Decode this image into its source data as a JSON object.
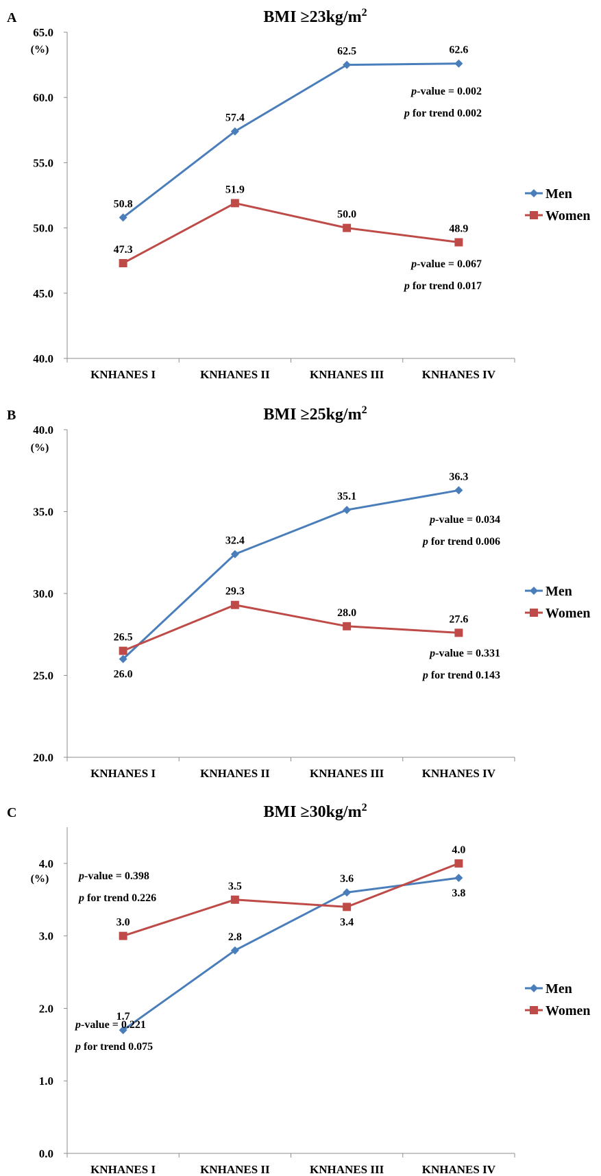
{
  "colors": {
    "men": "#4a7ebb",
    "women": "#be4b48",
    "axis": "#8c8c8c"
  },
  "chart_data": [
    {
      "type": "line",
      "panel": "A",
      "title": "BMI ≥23kg/m",
      "title_superscript": "2",
      "ylabel": "(%)",
      "ylim": [
        40,
        65
      ],
      "yticks": [
        "40.0",
        "45.0",
        "50.0",
        "55.0",
        "60.0",
        "65.0"
      ],
      "categories": [
        "KNHANES I",
        "KNHANES II",
        "KNHANES III",
        "KNHANES IV"
      ],
      "series": [
        {
          "name": "Men",
          "marker": "diamond",
          "values": [
            50.8,
            57.4,
            62.5,
            62.6
          ],
          "labels": [
            "50.8",
            "57.4",
            "62.5",
            "62.6"
          ],
          "label_pos": [
            "above",
            "above",
            "above",
            "above"
          ]
        },
        {
          "name": "Women",
          "marker": "square",
          "values": [
            47.3,
            51.9,
            50.0,
            48.9
          ],
          "labels": [
            "47.3",
            "51.9",
            "50.0",
            "48.9"
          ],
          "label_pos": [
            "above",
            "above",
            "above",
            "above"
          ]
        }
      ],
      "annotations": [
        {
          "group": "men",
          "lines": [
            {
              "prefix": "p",
              "text": "-value = 0.002"
            },
            {
              "prefix": "p",
              "text": " for trend 0.002"
            }
          ]
        },
        {
          "group": "women",
          "lines": [
            {
              "prefix": "p",
              "text": "-value = 0.067"
            },
            {
              "prefix": "p",
              "text": " for trend 0.017"
            }
          ]
        }
      ],
      "legend_position": "right"
    },
    {
      "type": "line",
      "panel": "B",
      "title": "BMI ≥25kg/m",
      "title_superscript": "2",
      "ylabel": "(%)",
      "ylim": [
        20,
        40
      ],
      "yticks": [
        "20.0",
        "25.0",
        "30.0",
        "35.0",
        "40.0"
      ],
      "categories": [
        "KNHANES I",
        "KNHANES II",
        "KNHANES III",
        "KNHANES IV"
      ],
      "series": [
        {
          "name": "Men",
          "marker": "diamond",
          "values": [
            26.0,
            32.4,
            35.1,
            36.3
          ],
          "labels": [
            "26.0",
            "32.4",
            "35.1",
            "36.3"
          ],
          "label_pos": [
            "below",
            "above",
            "above",
            "above"
          ]
        },
        {
          "name": "Women",
          "marker": "square",
          "values": [
            26.5,
            29.3,
            28.0,
            27.6
          ],
          "labels": [
            "26.5",
            "29.3",
            "28.0",
            "27.6"
          ],
          "label_pos": [
            "above",
            "above",
            "above",
            "above"
          ]
        }
      ],
      "annotations": [
        {
          "group": "men",
          "lines": [
            {
              "prefix": "p",
              "text": "-value = 0.034"
            },
            {
              "prefix": "p",
              "text": " for trend 0.006"
            }
          ]
        },
        {
          "group": "women",
          "lines": [
            {
              "prefix": "p",
              "text": "-value = 0.331"
            },
            {
              "prefix": "p",
              "text": " for trend 0.143"
            }
          ]
        }
      ],
      "legend_position": "right"
    },
    {
      "type": "line",
      "panel": "C",
      "title": "BMI ≥30kg/m",
      "title_superscript": "2",
      "ylabel": "(%)",
      "ylim": [
        0,
        4.5
      ],
      "yticks": [
        "0.0",
        "1.0",
        "2.0",
        "3.0",
        "4.0"
      ],
      "categories": [
        "KNHANES I",
        "KNHANES II",
        "KNHANES III",
        "KNHANES IV"
      ],
      "series": [
        {
          "name": "Men",
          "marker": "diamond",
          "values": [
            1.7,
            2.8,
            3.6,
            3.8
          ],
          "labels": [
            "1.7",
            "2.8",
            "3.6",
            "3.8"
          ],
          "label_pos": [
            "above",
            "above",
            "above",
            "below"
          ]
        },
        {
          "name": "Women",
          "marker": "square",
          "values": [
            3.0,
            3.5,
            3.4,
            4.0
          ],
          "labels": [
            "3.0",
            "3.5",
            "3.4",
            "4.0"
          ],
          "label_pos": [
            "above",
            "above",
            "below",
            "above"
          ]
        }
      ],
      "annotations": [
        {
          "group": "women",
          "lines": [
            {
              "prefix": "p",
              "text": "-value = 0.398"
            },
            {
              "prefix": "p",
              "text": " for trend 0.226"
            }
          ]
        },
        {
          "group": "men",
          "lines": [
            {
              "prefix": "p",
              "text": "-value = 0.221"
            },
            {
              "prefix": "p",
              "text": " for trend 0.075"
            }
          ]
        }
      ],
      "legend_position": "right"
    }
  ]
}
